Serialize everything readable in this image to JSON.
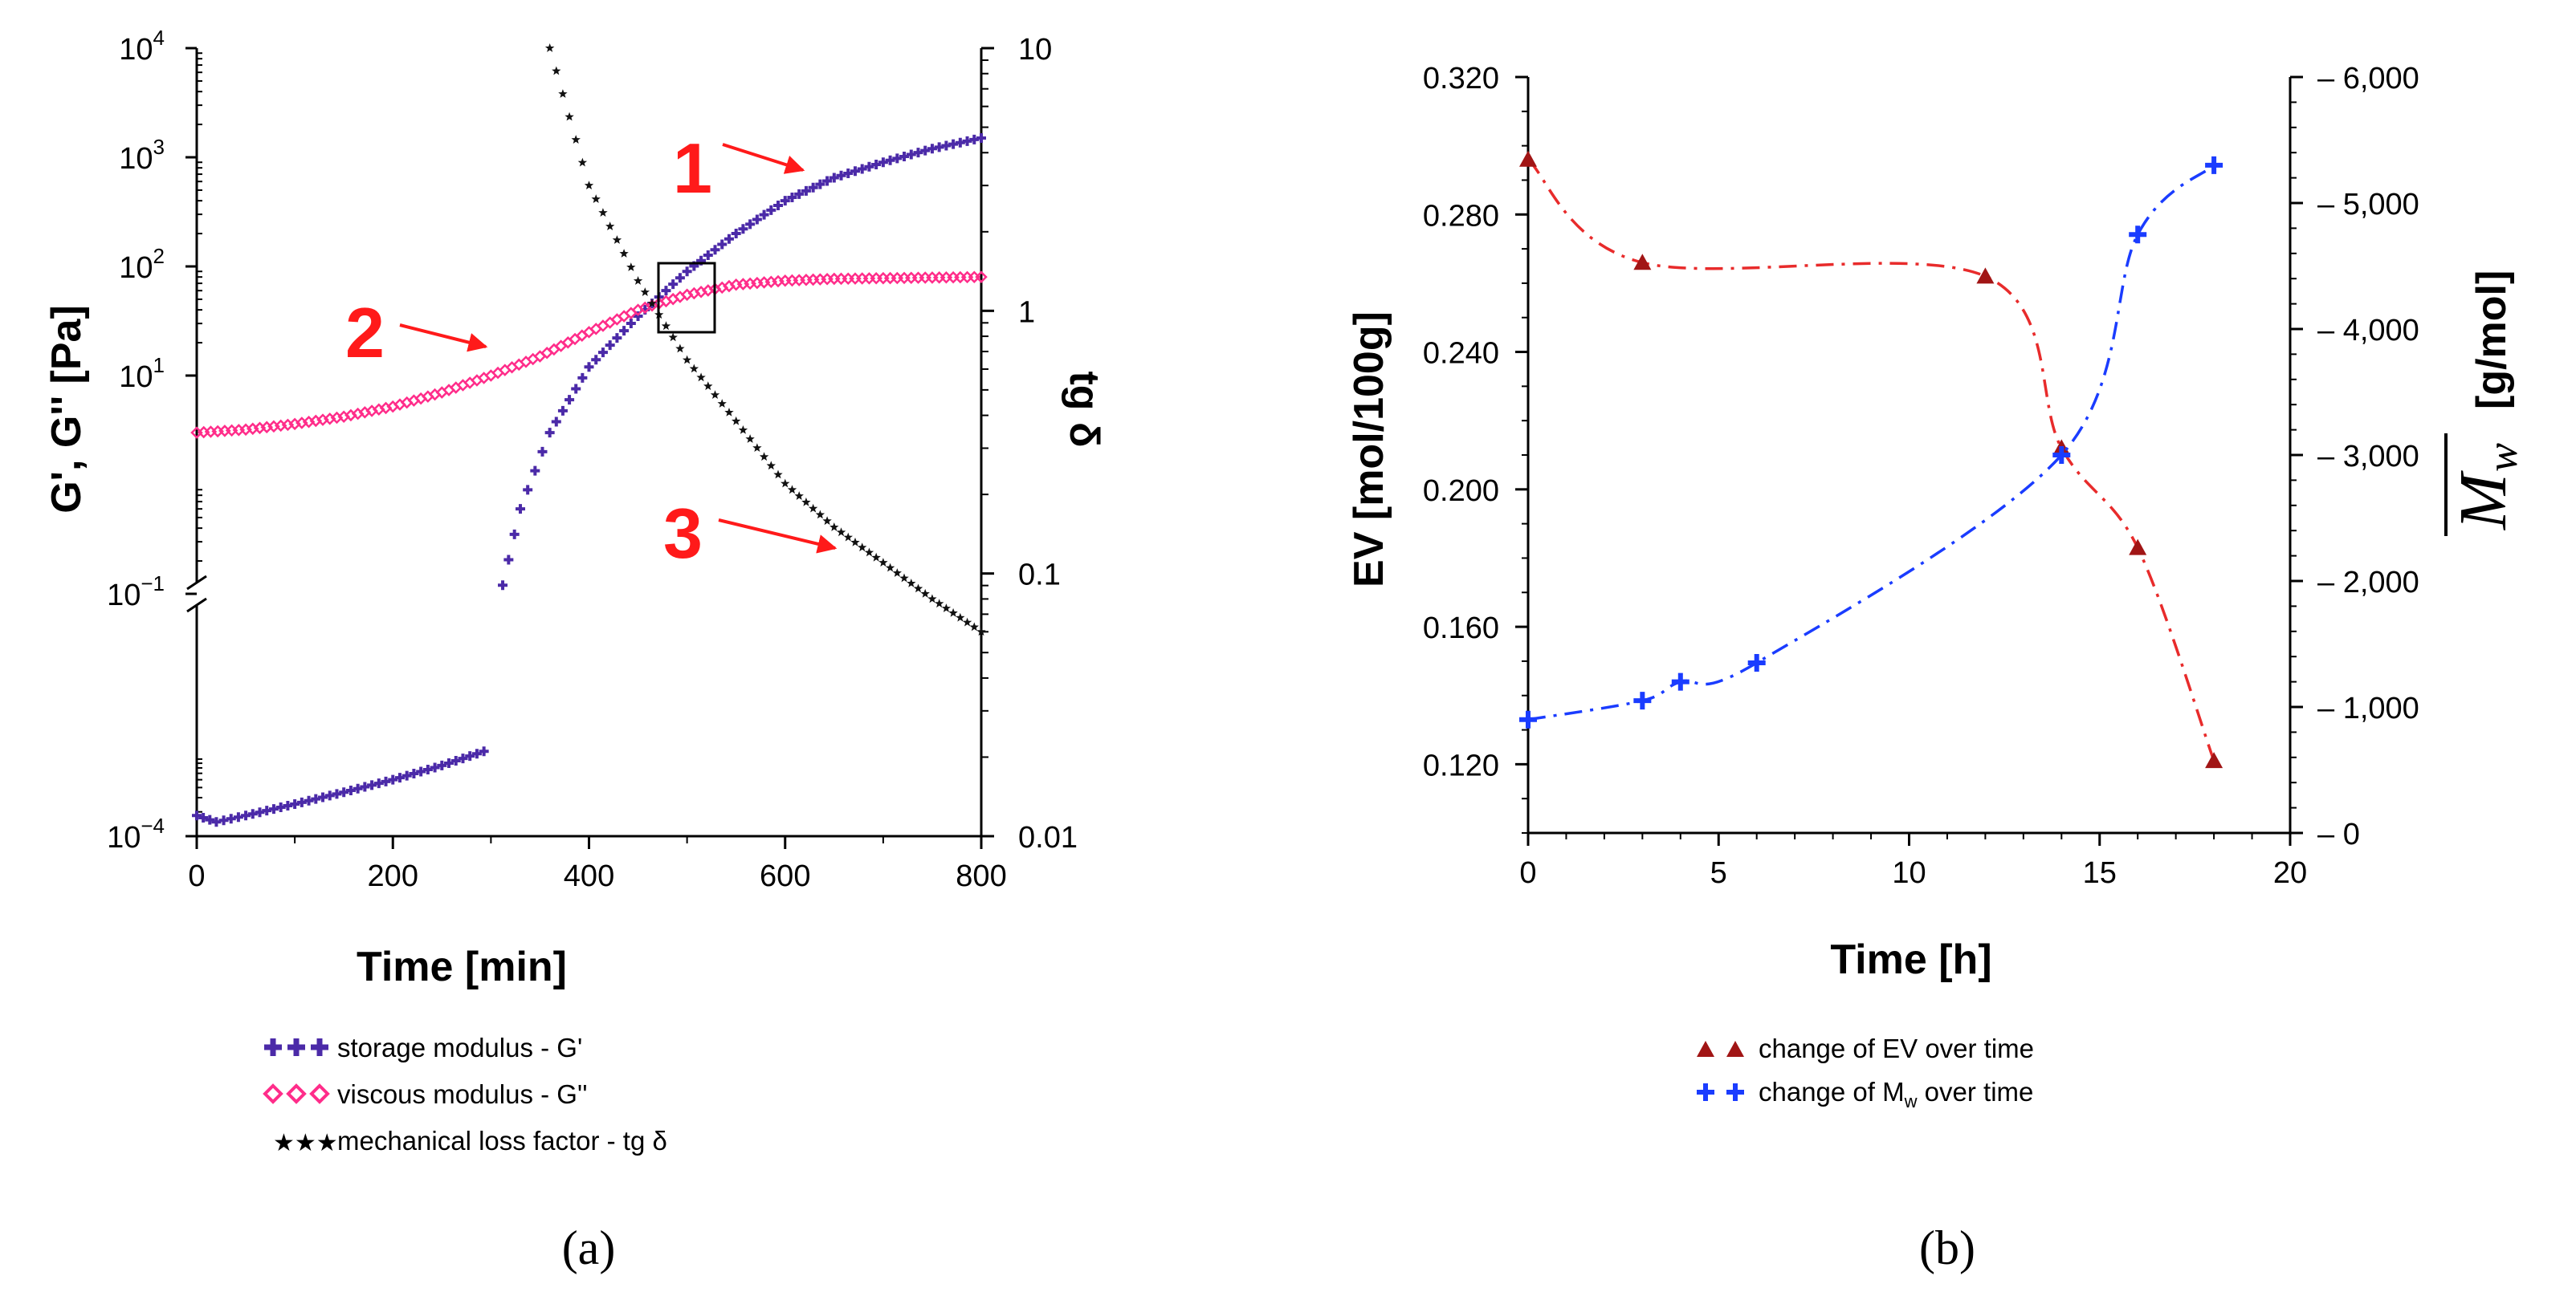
{
  "chart_data": [
    {
      "panel_label": "(a)",
      "type": "scatter",
      "xlabel": "Time [min]",
      "ylabel_left": "G', G'' [Pa]",
      "ylabel_right": "tg δ",
      "xlim": [
        0,
        800
      ],
      "x_ticks": [
        "0",
        "200",
        "400",
        "600",
        "800"
      ],
      "y_left_ticks": [
        "10",
        "10",
        "10",
        "10",
        "10",
        "10"
      ],
      "y_left_tick_exponents": [
        "4",
        "3",
        "2",
        "1",
        "−1",
        "−4"
      ],
      "y_left_tick_values": [
        10000,
        1000,
        100,
        10,
        0.1,
        0.0001
      ],
      "y_right_ticks": [
        "10",
        "1",
        "0.1",
        "0.01"
      ],
      "ylim_right": [
        0.01,
        10
      ],
      "series": [
        {
          "name": "storage modulus - G'",
          "axis": "left",
          "color": "#4b2aa8",
          "marker": "plus",
          "x": [
            0,
            20,
            50,
            100,
            150,
            200,
            250,
            300,
            312,
            330,
            360,
            400,
            450,
            500,
            550,
            600,
            650,
            700,
            750,
            800
          ],
          "values": [
            0.00018,
            0.00015,
            0.00018,
            0.00025,
            0.00035,
            0.0005,
            0.00075,
            0.0012,
            0.12,
            0.6,
            3,
            12,
            35,
            90,
            200,
            400,
            650,
            900,
            1200,
            1500
          ]
        },
        {
          "name": "viscous modulus - G''",
          "axis": "left",
          "color": "#ff2d8a",
          "marker": "diamond",
          "x": [
            0,
            50,
            100,
            150,
            200,
            250,
            300,
            350,
            400,
            450,
            500,
            550,
            600,
            650,
            700,
            750,
            800
          ],
          "values": [
            3,
            3.2,
            3.6,
            4.2,
            5.2,
            7,
            10,
            15,
            25,
            40,
            55,
            68,
            74,
            77,
            78,
            79,
            80
          ]
        },
        {
          "name": "mechanical loss factor - tg δ",
          "axis": "right",
          "color": "#111111",
          "marker": "star",
          "x": [
            360,
            400,
            450,
            500,
            550,
            600,
            650,
            700,
            750,
            800
          ],
          "values": [
            10,
            3,
            1.3,
            0.65,
            0.38,
            0.22,
            0.15,
            0.11,
            0.08,
            0.06
          ]
        }
      ],
      "annotations": [
        "1",
        "2",
        "3"
      ],
      "legend": [
        "storage modulus - G'",
        "viscous modulus - G''",
        "mechanical loss factor -  tg δ"
      ],
      "legend_position": "bottom"
    },
    {
      "panel_label": "(b)",
      "type": "line",
      "xlabel": "Time [h]",
      "ylabel_left": "EV [mol/100g]",
      "ylabel_right": "[g/mol]",
      "ylabel_right_symbol": "M",
      "ylabel_right_sub": "w",
      "xlim": [
        0,
        20
      ],
      "ylim_left": [
        0.1,
        0.32
      ],
      "ylim_right": [
        0,
        6000
      ],
      "x_ticks": [
        "0",
        "5",
        "10",
        "15",
        "20"
      ],
      "y_left_ticks": [
        "0.320",
        "0.280",
        "0.240",
        "0.200",
        "0.160",
        "0.120"
      ],
      "y_right_ticks": [
        "6,000",
        "5,000",
        "4,000",
        "3,000",
        "2,000",
        "1,000",
        "0"
      ],
      "series": [
        {
          "name": "change of EV over time",
          "axis": "left",
          "color": "#e82b2b",
          "marker_color": "#a11515",
          "marker": "triangle",
          "x": [
            0,
            3,
            12,
            14,
            16,
            18
          ],
          "values": [
            0.296,
            0.266,
            0.262,
            0.212,
            0.183,
            0.121
          ]
        },
        {
          "name": "change of Mw over time",
          "axis": "right",
          "color": "#1a3cff",
          "marker": "plus",
          "x": [
            0,
            3,
            4,
            6,
            14,
            16,
            18
          ],
          "values": [
            900,
            1050,
            1200,
            1350,
            3000,
            4750,
            5300
          ]
        }
      ],
      "legend": [
        "change of EV over time",
        "change of M",
        "w",
        " over time"
      ],
      "legend_position": "bottom"
    }
  ]
}
